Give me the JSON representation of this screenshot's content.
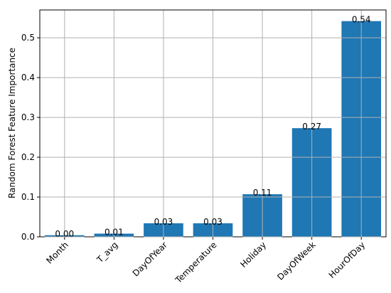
{
  "chart_data": {
    "type": "bar",
    "categories": [
      "Month",
      "T_avg",
      "DayOfYear",
      "Temperature",
      "Holiday",
      "DayOfWeek",
      "HourOfDay"
    ],
    "values": [
      0.004,
      0.008,
      0.034,
      0.034,
      0.107,
      0.273,
      0.542
    ],
    "data_labels": [
      "0.00",
      "0.01",
      "0.03",
      "0.03",
      "0.11",
      "0.27",
      "0.54"
    ],
    "ylabel": "Random Forest Feature Importance",
    "ylim": [
      0,
      0.57
    ],
    "yticks": [
      0,
      0.1,
      0.2,
      0.3,
      0.4,
      0.5
    ],
    "ytick_labels": [
      "0.0",
      "0.1",
      "0.2",
      "0.3",
      "0.4",
      "0.5"
    ],
    "grid": true,
    "bar_color": "#1f77b4",
    "grid_color": "#b0b0b0"
  }
}
